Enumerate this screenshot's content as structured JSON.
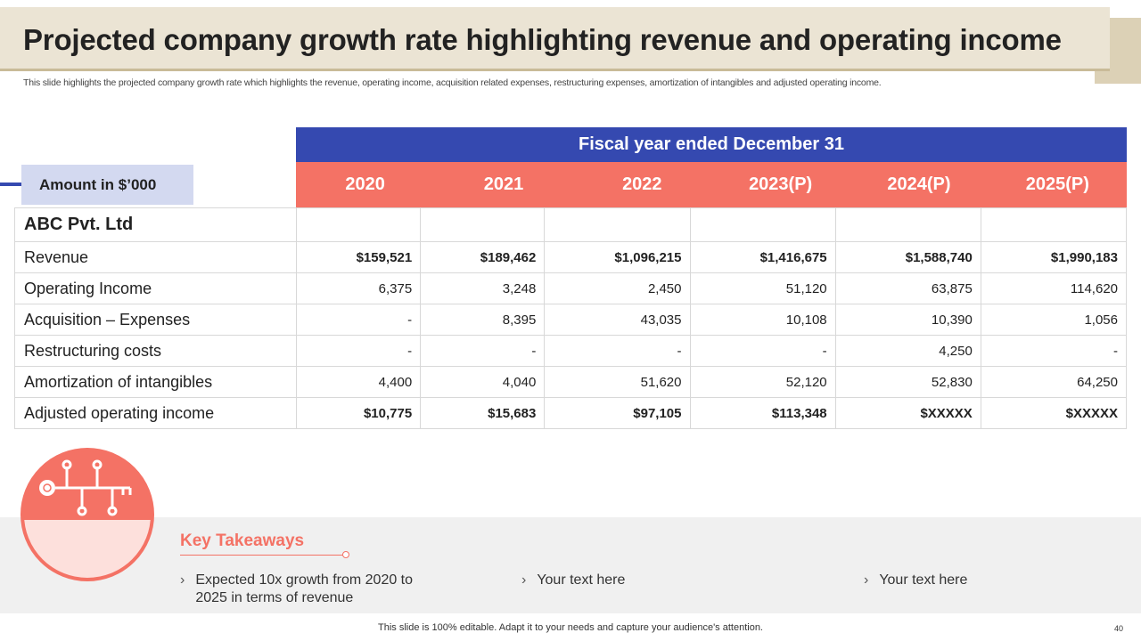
{
  "title": "Projected company growth rate highlighting revenue and operating income",
  "subtitle": "This slide highlights the projected company growth rate which highlights the revenue, operating income, acquisition related expenses, restructuring expenses, amortization of intangibles and adjusted operating income.",
  "table": {
    "fiscal_header": "Fiscal year ended December 31",
    "amount_label": "Amount in $’000",
    "years": [
      "2020",
      "2021",
      "2022",
      "2023(P)",
      "2024(P)",
      "2025(P)"
    ],
    "company": "ABC Pvt. Ltd",
    "rows": [
      {
        "label": "Revenue",
        "values": [
          "$159,521",
          "$189,462",
          "$1,096,215",
          "$1,416,675",
          "$1,588,740",
          "$1,990,183"
        ]
      },
      {
        "label": "Operating Income",
        "values": [
          "6,375",
          "3,248",
          "2,450",
          "51,120",
          "63,875",
          "114,620"
        ]
      },
      {
        "label": "Acquisition – Expenses",
        "values": [
          "-",
          "8,395",
          "43,035",
          "10,108",
          "10,390",
          "1,056"
        ]
      },
      {
        "label": "Restructuring costs",
        "values": [
          "-",
          "-",
          "-",
          "-",
          "4,250",
          "-"
        ]
      },
      {
        "label": "Amortization of intangibles",
        "values": [
          "4,400",
          "4,040",
          "51,620",
          "52,120",
          "52,830",
          "64,250"
        ]
      },
      {
        "label": "Adjusted operating income",
        "values": [
          "$10,775",
          "$15,683",
          "$97,105",
          "$113,348",
          "$XXXXX",
          "$XXXXX"
        ]
      }
    ]
  },
  "takeaways": {
    "heading": "Key Takeaways",
    "items": [
      "Expected 10x growth from 2020 to 2025 in terms of revenue",
      "Your text here",
      "Your text here"
    ]
  },
  "footer": "This slide is 100% editable. Adapt it to your needs and capture your audience's attention.",
  "page_number": "40",
  "colors": {
    "blue": "#3549b0",
    "coral": "#f47265",
    "beige": "#ebe4d4"
  }
}
